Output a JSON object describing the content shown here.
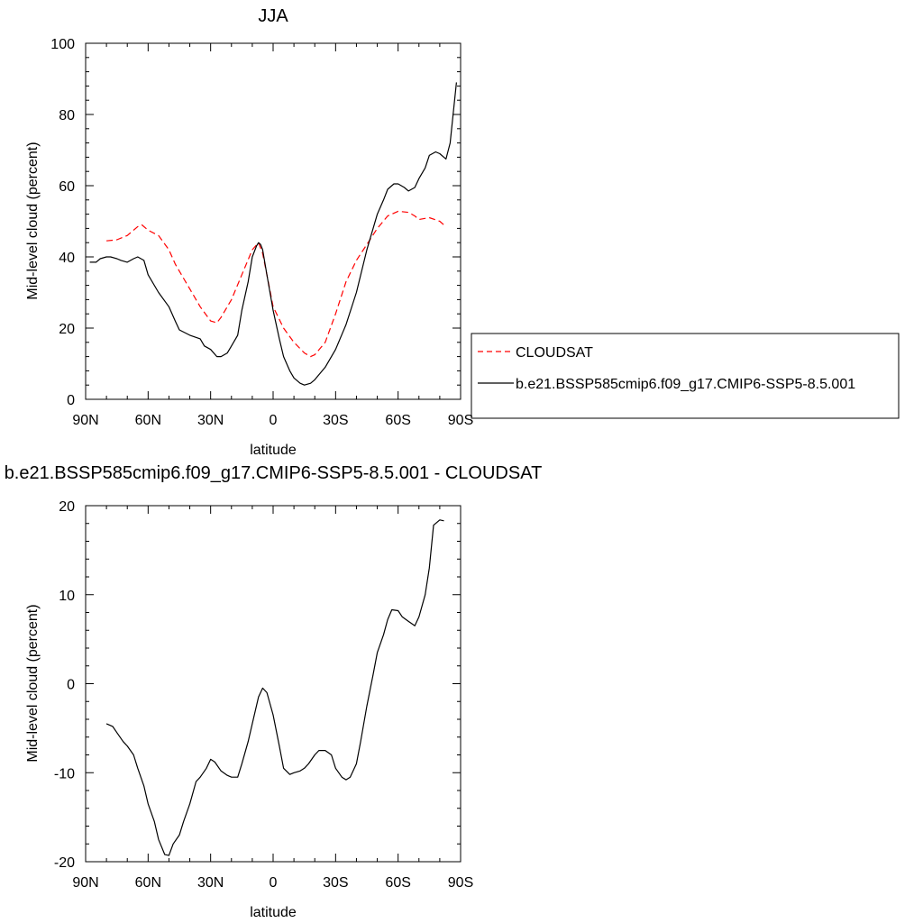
{
  "chart_data": [
    {
      "type": "line",
      "title": "JJA",
      "xlabel": "latitude",
      "ylabel": "Mid-level cloud (percent)",
      "xlim": [
        90,
        -90
      ],
      "ylim": [
        0,
        100
      ],
      "x_ticks": [
        90,
        60,
        30,
        0,
        -30,
        -60,
        -90
      ],
      "x_tick_labels": [
        "90N",
        "60N",
        "30N",
        "0",
        "30S",
        "60S",
        "90S"
      ],
      "y_ticks": [
        0,
        20,
        40,
        60,
        80,
        100
      ],
      "y_tick_labels": [
        "0",
        "20",
        "40",
        "60",
        "80",
        "100"
      ],
      "legend": {
        "placement": "right"
      },
      "series": [
        {
          "name": "CLOUDSAT",
          "color": "#ff0000",
          "dash": "dashed",
          "x": [
            80,
            75,
            70,
            65,
            63,
            60,
            55,
            50,
            47,
            45,
            40,
            35,
            30,
            27,
            25,
            20,
            15,
            10,
            7,
            5,
            2,
            0,
            -5,
            -10,
            -15,
            -18,
            -20,
            -25,
            -30,
            -35,
            -40,
            -45,
            -50,
            -55,
            -60,
            -65,
            -68,
            -70,
            -75,
            -80,
            -82
          ],
          "y": [
            44.5,
            44.8,
            46,
            48.5,
            49,
            47.5,
            46,
            42,
            38,
            36,
            31,
            26,
            22,
            21.5,
            23,
            28,
            35,
            42,
            44,
            41,
            32,
            26,
            20,
            16,
            13,
            12,
            12.5,
            16,
            24,
            33,
            39,
            43.5,
            48,
            51.5,
            52.8,
            52.5,
            51.5,
            50.5,
            51,
            50,
            49
          ]
        },
        {
          "name": "b.e21.BSSP585cmip6.f09_g17.CMIP6-SSP5-8.5.001",
          "color": "#000000",
          "dash": "solid",
          "x": [
            88,
            85,
            83,
            80,
            78,
            75,
            73,
            70,
            67,
            65,
            62,
            60,
            55,
            50,
            47,
            45,
            40,
            35,
            33,
            30,
            27,
            25,
            22,
            20,
            17,
            15,
            12,
            10,
            8,
            7,
            6,
            5,
            3,
            0,
            -3,
            -5,
            -8,
            -10,
            -13,
            -15,
            -18,
            -20,
            -25,
            -30,
            -35,
            -40,
            -45,
            -50,
            -53,
            -55,
            -58,
            -60,
            -63,
            -65,
            -68,
            -70,
            -73,
            -75,
            -78,
            -80,
            -83,
            -85,
            -88
          ],
          "y": [
            38.5,
            38.5,
            39.5,
            40,
            40,
            39.5,
            39,
            38.5,
            39.5,
            40,
            39,
            35,
            30,
            26,
            22,
            19.5,
            18,
            17,
            15,
            14,
            12,
            12,
            13,
            15,
            18,
            25,
            33,
            40,
            43,
            44,
            43.5,
            42,
            35,
            25,
            17,
            12,
            8,
            6,
            4.5,
            4,
            4.5,
            5.5,
            9,
            14,
            21,
            30,
            42,
            52,
            56,
            59,
            60.5,
            60.5,
            59.5,
            58.5,
            59.5,
            62,
            65,
            68.5,
            69.5,
            69,
            67.5,
            72,
            89
          ]
        }
      ]
    },
    {
      "type": "line",
      "title": "b.e21.BSSP585cmip6.f09_g17.CMIP6-SSP5-8.5.001 - CLOUDSAT",
      "xlabel": "latitude",
      "ylabel": "Mid-level cloud (percent)",
      "xlim": [
        90,
        -90
      ],
      "ylim": [
        -20,
        20
      ],
      "x_ticks": [
        90,
        60,
        30,
        0,
        -30,
        -60,
        -90
      ],
      "x_tick_labels": [
        "90N",
        "60N",
        "30N",
        "0",
        "30S",
        "60S",
        "90S"
      ],
      "y_ticks": [
        -20,
        -10,
        0,
        10,
        20
      ],
      "y_tick_labels": [
        "-20",
        "-10",
        "0",
        "10",
        "20"
      ],
      "series": [
        {
          "color": "#000000",
          "dash": "solid",
          "x": [
            80,
            77,
            75,
            72,
            70,
            67,
            65,
            62,
            60,
            57,
            55,
            52,
            50,
            48,
            45,
            43,
            40,
            37,
            35,
            32,
            30,
            28,
            25,
            22,
            20,
            17,
            15,
            12,
            10,
            7,
            5,
            3,
            0,
            -3,
            -5,
            -8,
            -10,
            -13,
            -15,
            -17,
            -20,
            -22,
            -25,
            -28,
            -30,
            -33,
            -35,
            -37,
            -40,
            -42,
            -45,
            -48,
            -50,
            -53,
            -55,
            -57,
            -60,
            -62,
            -65,
            -68,
            -70,
            -73,
            -75,
            -77,
            -80,
            -82
          ],
          "y": [
            -4.5,
            -4.8,
            -5.5,
            -6.5,
            -7,
            -8,
            -9.5,
            -11.5,
            -13.5,
            -15.5,
            -17.5,
            -19.2,
            -19.3,
            -18,
            -17,
            -15.5,
            -13.5,
            -11,
            -10.5,
            -9.5,
            -8.5,
            -8.8,
            -9.8,
            -10.3,
            -10.5,
            -10.5,
            -9,
            -6.5,
            -4.5,
            -1.5,
            -0.5,
            -1,
            -3.5,
            -7,
            -9.5,
            -10.2,
            -10,
            -9.8,
            -9.5,
            -9,
            -8,
            -7.5,
            -7.5,
            -8,
            -9.5,
            -10.5,
            -10.8,
            -10.5,
            -9,
            -6.5,
            -2.5,
            1,
            3.5,
            5.5,
            7.2,
            8.3,
            8.2,
            7.5,
            7,
            6.5,
            7.5,
            10,
            13,
            17.8,
            18.4,
            18.3
          ]
        }
      ]
    }
  ]
}
